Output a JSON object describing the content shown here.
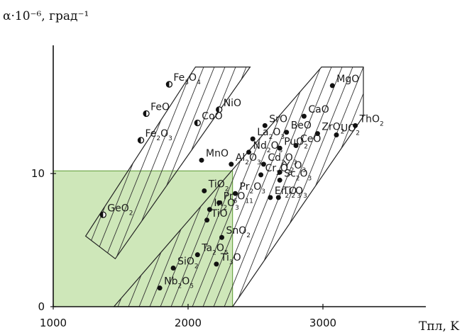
{
  "chart_data": {
    "type": "scatter",
    "ylabel": "α·10⁻⁶, град⁻¹",
    "xlabel": "Tпл, K",
    "xlim": [
      1000,
      3300
    ],
    "ylim": [
      0,
      18
    ],
    "x_ticks": [
      "1000",
      "2000",
      "3000"
    ],
    "y_ticks": [
      "0",
      "10"
    ],
    "grid": false,
    "highlight_region": {
      "x": [
        1000,
        2330
      ],
      "y": [
        0,
        10.2
      ],
      "color": "#a6d37f"
    },
    "bands": [
      {
        "hatched": true,
        "corners": [
          [
            1240,
            5.3
          ],
          [
            2055,
            18
          ],
          [
            2460,
            18
          ],
          [
            1460,
            3.6
          ]
        ]
      },
      {
        "hatched": true,
        "corners": [
          [
            1450,
            0
          ],
          [
            2990,
            18
          ],
          [
            3300,
            18
          ],
          [
            3300,
            14.3
          ],
          [
            2330,
            0
          ]
        ]
      }
    ],
    "points": [
      {
        "oxide": "Fe3O4",
        "x": 1860,
        "y": 16.7,
        "marker": "half"
      },
      {
        "oxide": "NiO",
        "x": 2230,
        "y": 14.8,
        "marker": "half"
      },
      {
        "oxide": "FeO",
        "x": 1690,
        "y": 14.5,
        "marker": "half"
      },
      {
        "oxide": "CoO",
        "x": 2070,
        "y": 13.8,
        "marker": "half"
      },
      {
        "oxide": "Fe2O3",
        "x": 1650,
        "y": 12.5,
        "marker": "half"
      },
      {
        "oxide": "GeO2",
        "x": 1370,
        "y": 6.9,
        "marker": "half"
      },
      {
        "oxide": "MgO",
        "x": 3070,
        "y": 16.6,
        "marker": "filled"
      },
      {
        "oxide": "CaO",
        "x": 2860,
        "y": 14.3,
        "marker": "filled"
      },
      {
        "oxide": "SrO",
        "x": 2570,
        "y": 13.6,
        "marker": "filled"
      },
      {
        "oxide": "BeO",
        "x": 2730,
        "y": 13.1,
        "marker": "filled"
      },
      {
        "oxide": "ZrO2",
        "x": 2960,
        "y": 13.0,
        "marker": "filled"
      },
      {
        "oxide": "UO2",
        "x": 3100,
        "y": 12.9,
        "marker": "filled"
      },
      {
        "oxide": "ThO2",
        "x": 3240,
        "y": 13.6,
        "marker": "filled"
      },
      {
        "oxide": "La2O3",
        "x": 2480,
        "y": 12.6,
        "marker": "filled"
      },
      {
        "oxide": "PuO2",
        "x": 2680,
        "y": 11.9,
        "marker": "filled"
      },
      {
        "oxide": "CeO",
        "x": 2800,
        "y": 12.1,
        "marker": "filled"
      },
      {
        "oxide": "Nd2O3",
        "x": 2450,
        "y": 11.6,
        "marker": "filled"
      },
      {
        "oxide": "Cd2O3",
        "x": 2560,
        "y": 10.7,
        "marker": "filled"
      },
      {
        "oxide": "Y2O3",
        "x": 2680,
        "y": 10.1,
        "marker": "filled"
      },
      {
        "oxide": "MnO",
        "x": 2100,
        "y": 11.0,
        "marker": "filled"
      },
      {
        "oxide": "Al2O3",
        "x": 2320,
        "y": 10.7,
        "marker": "filled"
      },
      {
        "oxide": "Cr2O3",
        "x": 2540,
        "y": 9.9,
        "marker": "filled"
      },
      {
        "oxide": "Sc2O3",
        "x": 2680,
        "y": 9.5,
        "marker": "filled"
      },
      {
        "oxide": "TiO2",
        "x": 2120,
        "y": 8.7,
        "marker": "filled"
      },
      {
        "oxide": "Pr2O3",
        "x": 2350,
        "y": 8.5,
        "marker": "filled"
      },
      {
        "oxide": "Er2O3",
        "x": 2610,
        "y": 8.2,
        "marker": "filled"
      },
      {
        "oxide": "Ti2O3",
        "x": 2670,
        "y": 8.2,
        "marker": "filled"
      },
      {
        "oxide": "In2O3",
        "x": 2160,
        "y": 7.3,
        "marker": "filled"
      },
      {
        "oxide": "Pr6O11",
        "x": 2230,
        "y": 7.8,
        "marker": "filled"
      },
      {
        "oxide": "TiO",
        "x": 2140,
        "y": 6.5,
        "marker": "filled"
      },
      {
        "oxide": "SnO2",
        "x": 2250,
        "y": 5.2,
        "marker": "filled"
      },
      {
        "oxide": "Ta2O5",
        "x": 2070,
        "y": 3.9,
        "marker": "filled"
      },
      {
        "oxide": "SiO2",
        "x": 1890,
        "y": 2.9,
        "marker": "filled"
      },
      {
        "oxide": "Ti3O",
        "x": 2210,
        "y": 3.2,
        "marker": "filled"
      },
      {
        "oxide": "Nb2O5",
        "x": 1790,
        "y": 1.4,
        "marker": "filled"
      }
    ]
  }
}
